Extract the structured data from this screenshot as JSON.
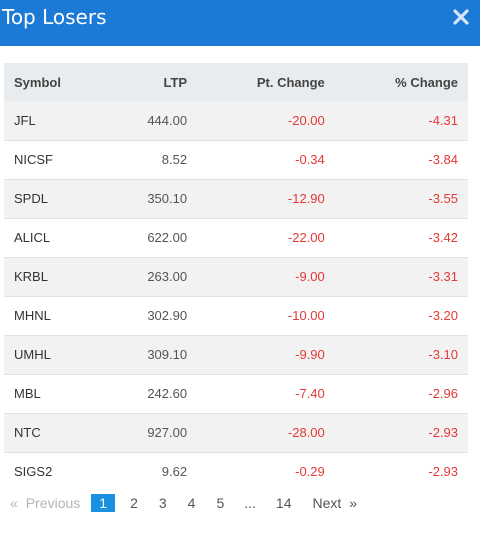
{
  "header": {
    "title": "Top Losers",
    "close_icon": "close-icon"
  },
  "table": {
    "columns": [
      "Symbol",
      "LTP",
      "Pt. Change",
      "% Change"
    ],
    "rows": [
      [
        "JFL",
        "444.00",
        "-20.00",
        "-4.31"
      ],
      [
        "NICSF",
        "8.52",
        "-0.34",
        "-3.84"
      ],
      [
        "SPDL",
        "350.10",
        "-12.90",
        "-3.55"
      ],
      [
        "ALICL",
        "622.00",
        "-22.00",
        "-3.42"
      ],
      [
        "KRBL",
        "263.00",
        "-9.00",
        "-3.31"
      ],
      [
        "MHNL",
        "302.90",
        "-10.00",
        "-3.20"
      ],
      [
        "UMHL",
        "309.10",
        "-9.90",
        "-3.10"
      ],
      [
        "MBL",
        "242.60",
        "-7.40",
        "-2.96"
      ],
      [
        "NTC",
        "927.00",
        "-28.00",
        "-2.93"
      ],
      [
        "SIGS2",
        "9.62",
        "-0.29",
        "-2.93"
      ]
    ]
  },
  "pagination": {
    "prev_arrow": "«",
    "prev_label": "Previous",
    "pages": [
      "1",
      "2",
      "3",
      "4",
      "5",
      "...",
      "14"
    ],
    "active_page": "1",
    "next_label": "Next",
    "next_arrow": "»"
  },
  "colors": {
    "header_bg": "#1a7ad6",
    "negative": "#e53935",
    "active_page": "#1a90e0"
  }
}
